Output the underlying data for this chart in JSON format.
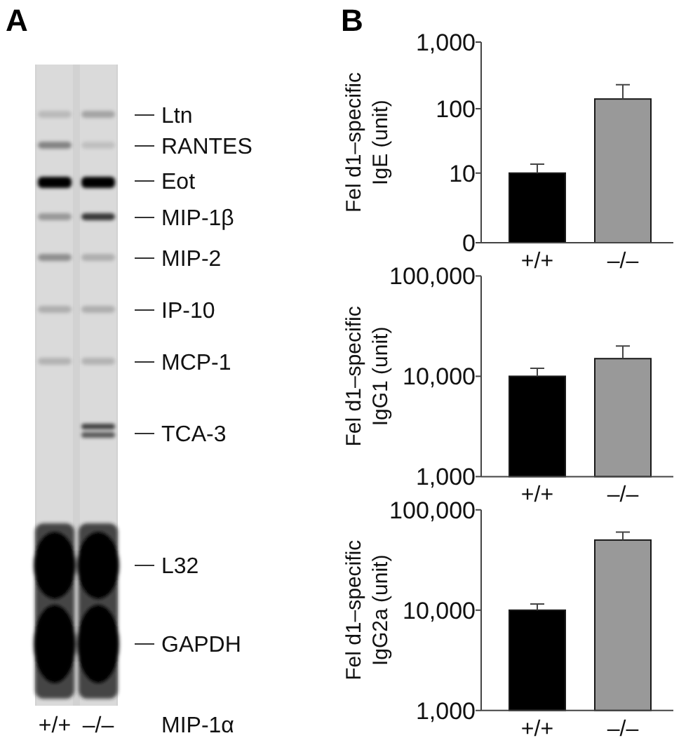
{
  "chart_data": [
    {
      "type": "other",
      "title": "A",
      "categories": [
        "+/+",
        "–/–"
      ],
      "xlabel": "MIP-1α",
      "annotations": [
        "Ltn",
        "RANTES",
        "Eot",
        "MIP-1β",
        "MIP-2",
        "IP-10",
        "MCP-1",
        "TCA-3",
        "L32",
        "GAPDH"
      ]
    },
    {
      "type": "bar",
      "title": "B",
      "ylabel": "Fel d1–specific\nIgE (unit)",
      "categories": [
        "+/+",
        "–/–"
      ],
      "values": [
        10,
        140
      ],
      "colors": [
        "#000000",
        "#999999"
      ],
      "errors": [
        [
          10,
          14
        ],
        [
          140,
          230
        ]
      ],
      "log": true,
      "ylim": [
        0,
        1000
      ],
      "yticks": [
        0,
        10,
        100,
        {
          "value": 1000,
          "label": "1,000"
        }
      ]
    },
    {
      "type": "bar",
      "ylabel": "Fel d1–specific\nIgG1 (unit)",
      "categories": [
        "+/+",
        "–/–"
      ],
      "values": [
        10000,
        15000
      ],
      "colors": [
        "#000000",
        "#999999"
      ],
      "errors": [
        [
          10000,
          12000
        ],
        [
          15000,
          20000
        ]
      ],
      "log": true,
      "ylim": [
        1000,
        100000
      ],
      "yticks": [
        {
          "value": 1000,
          "label": "1,000"
        },
        {
          "value": 10000,
          "label": "10,000"
        },
        {
          "value": 100000,
          "label": "100,000"
        }
      ]
    },
    {
      "type": "bar",
      "ylabel": "Fel d1–specific\nIgG2a (unit)",
      "categories": [
        "+/+",
        "–/–"
      ],
      "values": [
        10000,
        50000
      ],
      "colors": [
        "#000000",
        "#999999"
      ],
      "errors": [
        [
          10000,
          11500
        ],
        [
          50000,
          60000
        ]
      ],
      "log": true,
      "ylim": [
        1000,
        100000
      ],
      "yticks": [
        {
          "value": 1000,
          "label": "1,000"
        },
        {
          "value": 10000,
          "label": "10,000"
        },
        {
          "value": 100000,
          "label": "100,000"
        }
      ]
    }
  ]
}
